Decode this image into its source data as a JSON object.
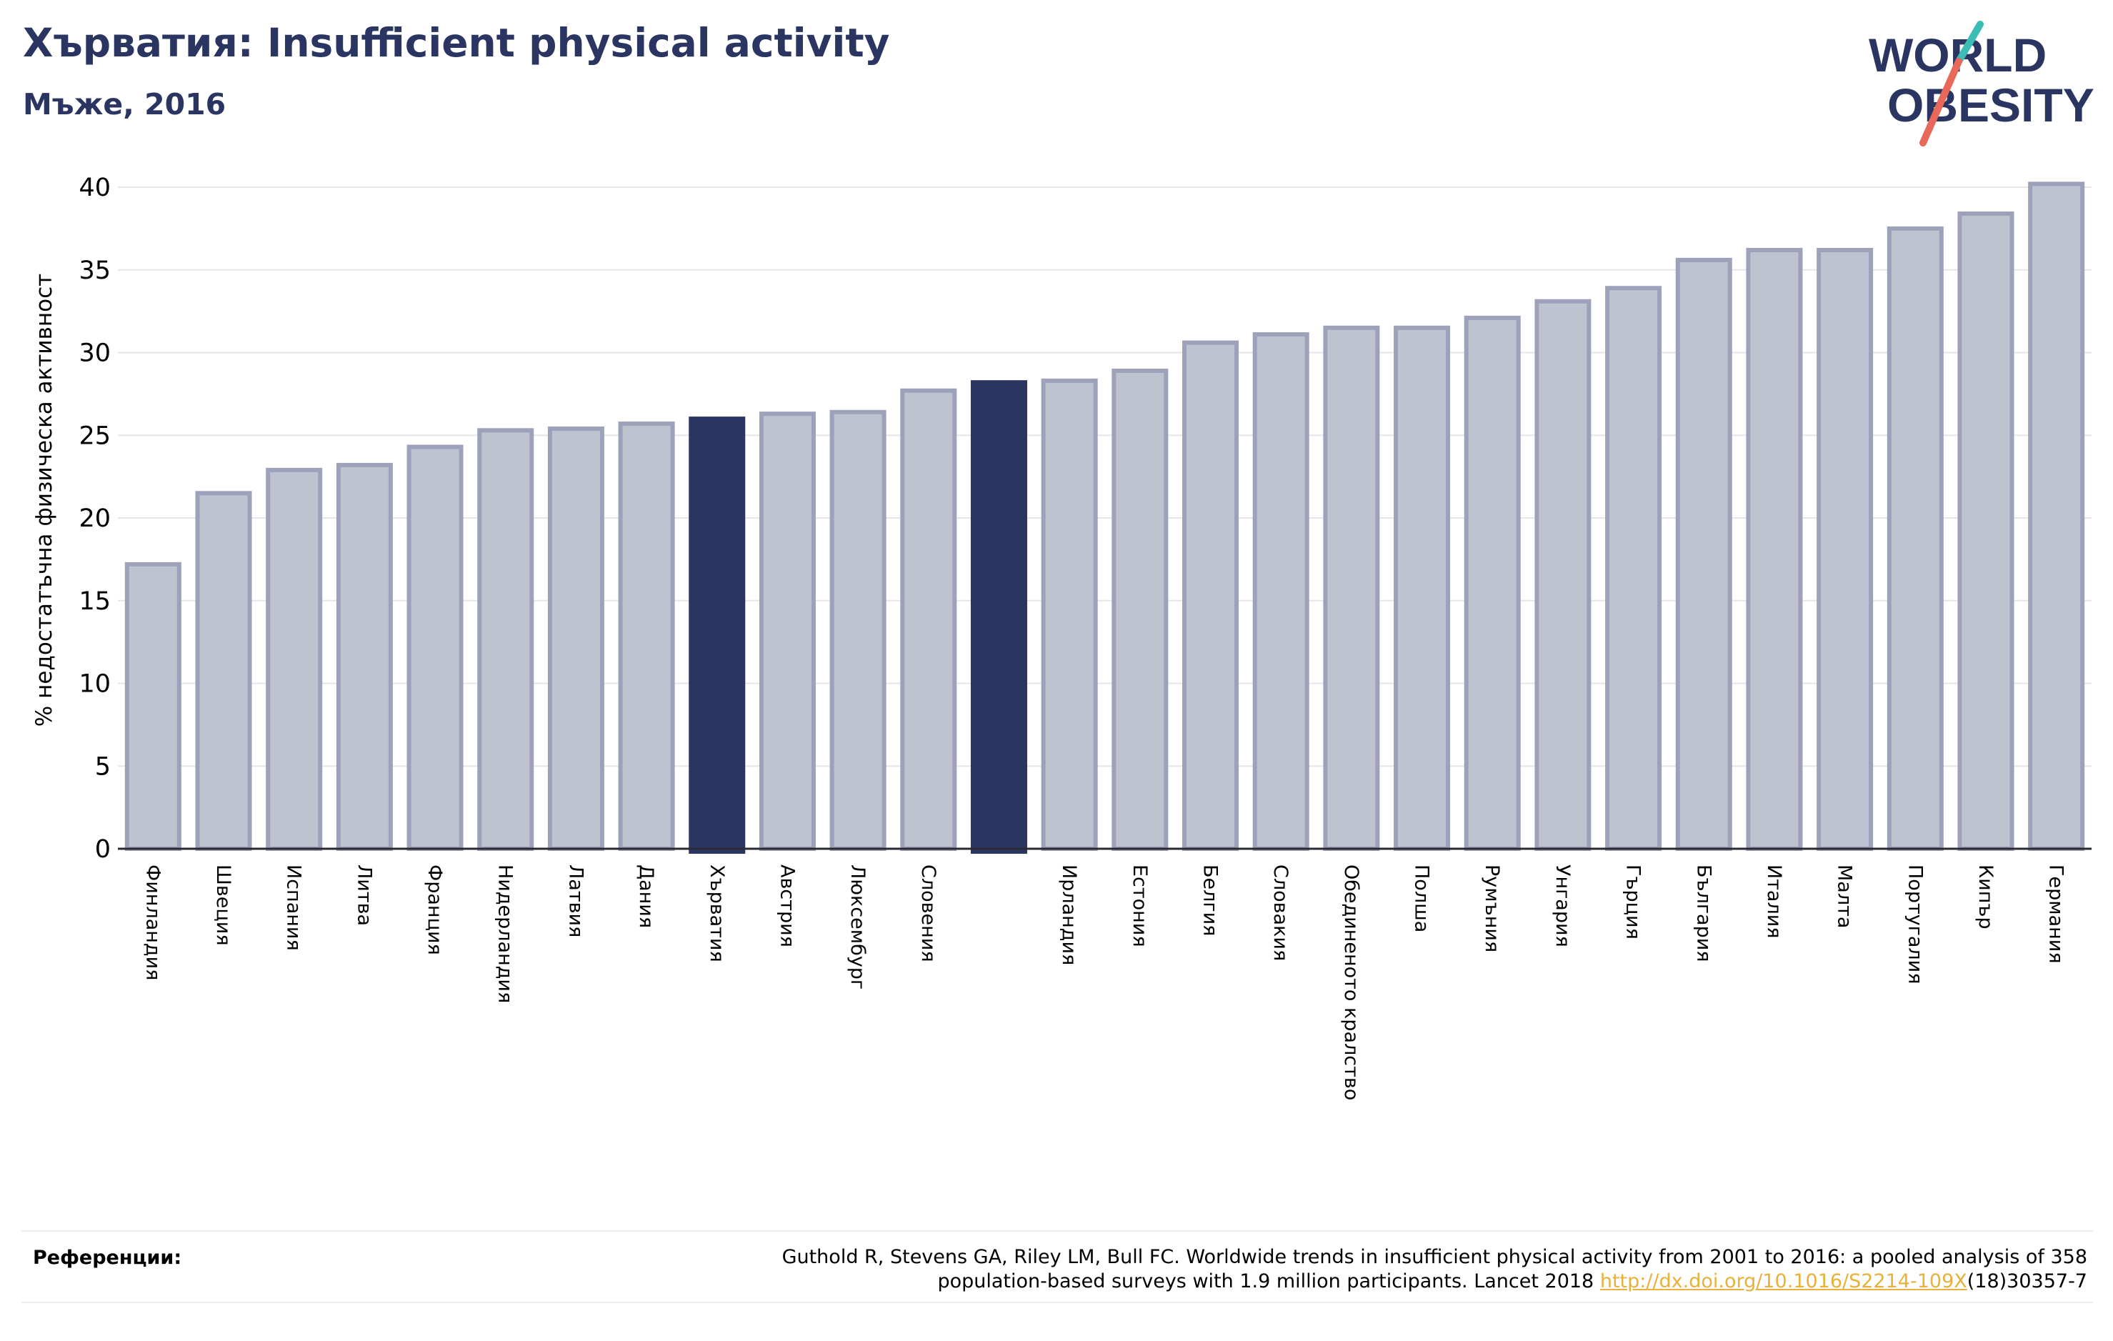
{
  "header": {
    "title": "Хърватия: Insufficient physical activity",
    "subtitle": "Мъже, 2016"
  },
  "logo": {
    "line1": "WORLD",
    "line2": "OBESITY"
  },
  "colors": {
    "bar": "#bfc2cf",
    "bar_edge": "#9da2ba",
    "highlight": "#2a3561",
    "title": "#2a3561",
    "link": "#e8b13a"
  },
  "chart_data": {
    "type": "bar",
    "ylabel": "% недостатъчна физическа активност",
    "xlabel": "",
    "ylim": [
      0,
      42
    ],
    "yticks": [
      0,
      5,
      10,
      15,
      20,
      25,
      30,
      35,
      40
    ],
    "grid": true,
    "categories": [
      "Финландия",
      "Швеция",
      "Испания",
      "Литва",
      "Франция",
      "Нидерландия",
      "Латвия",
      "Дания",
      "Хърватия",
      "Австрия",
      "Люксембург",
      "Словения",
      "",
      "Ирландия",
      "Естония",
      "Белгия",
      "Словакия",
      "Обединеното кралство",
      "Полша",
      "Румъния",
      "Унгария",
      "Гърция",
      "България",
      "Италия",
      "Малта",
      "Португалия",
      "Кипър",
      "Германия"
    ],
    "values": [
      17.2,
      21.5,
      22.9,
      23.2,
      24.3,
      25.3,
      25.4,
      25.7,
      26.0,
      26.3,
      26.4,
      27.7,
      28.2,
      28.3,
      28.9,
      30.6,
      31.1,
      31.5,
      31.5,
      32.1,
      33.1,
      33.9,
      35.6,
      36.2,
      36.2,
      37.5,
      38.4,
      40.2
    ],
    "highlighted": [
      8,
      12
    ]
  },
  "references": {
    "label": "Референции:",
    "line1": "Guthold R, Stevens GA, Riley LM, Bull FC. Worldwide trends in insufficient physical activity from 2001 to 2016: a pooled analysis of 358",
    "line2_before": "population-based surveys with 1.9 million participants. Lancet 2018 ",
    "line2_link": "http://dx.doi.org/10.1016/S2214-109X",
    "line2_after": "(18)30357-7"
  }
}
